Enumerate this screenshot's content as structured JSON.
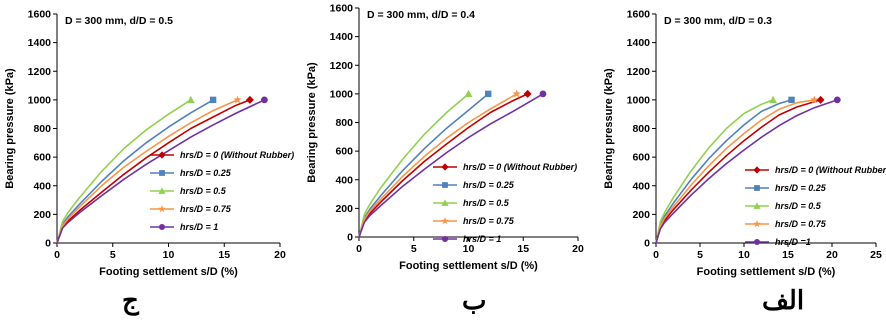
{
  "chart_data": [
    {
      "type": "line",
      "panel_label": "ج",
      "title": "D = 300 mm, d/D = 0.5",
      "xlabel": "Footing settlement  s/D (%)",
      "ylabel": "Bearing pressure (kPa)",
      "xlim": [
        0,
        20
      ],
      "ylim": [
        0,
        1600
      ],
      "xticks": [
        0,
        5,
        10,
        15,
        20
      ],
      "yticks": [
        0,
        200,
        400,
        600,
        800,
        1000,
        1200,
        1400,
        1600
      ],
      "grid": false,
      "legend_position": "bottom-right",
      "series": [
        {
          "name": "hrs/D = 0 (Without Rubber)",
          "color": "#c00000",
          "marker": "diamond",
          "x": [
            0,
            0.5,
            1,
            2,
            4,
            6,
            8,
            10,
            12,
            14,
            16,
            17.3
          ],
          "y": [
            0,
            110,
            155,
            225,
            355,
            480,
            595,
            700,
            800,
            880,
            960,
            1000
          ]
        },
        {
          "name": "hrs/D = 0.25",
          "color": "#4f81bd",
          "marker": "square",
          "x": [
            0,
            0.5,
            1,
            2,
            4,
            6,
            8,
            10,
            12,
            14
          ],
          "y": [
            0,
            130,
            185,
            270,
            430,
            575,
            700,
            810,
            910,
            1000
          ]
        },
        {
          "name": "hrs/D = 0.5",
          "color": "#92d050",
          "marker": "triangle",
          "x": [
            0,
            0.5,
            1,
            2,
            4,
            6,
            8,
            10,
            12
          ],
          "y": [
            0,
            150,
            215,
            315,
            500,
            660,
            790,
            900,
            1000
          ]
        },
        {
          "name": "hrs/D = 0.75",
          "color": "#f79646",
          "marker": "star",
          "x": [
            0,
            0.5,
            1,
            2,
            4,
            6,
            8,
            10,
            12,
            14,
            16.2
          ],
          "y": [
            0,
            120,
            170,
            250,
            400,
            530,
            640,
            745,
            840,
            925,
            1000
          ]
        },
        {
          "name": "hrs/D = 1",
          "color": "#7030a0",
          "marker": "circle",
          "x": [
            0,
            0.5,
            1,
            2,
            4,
            6,
            8,
            10,
            12,
            14,
            16,
            18.6
          ],
          "y": [
            0,
            105,
            145,
            210,
            330,
            445,
            550,
            645,
            740,
            825,
            905,
            1000
          ]
        }
      ]
    },
    {
      "type": "line",
      "panel_label": "ب",
      "title": "D = 300 mm, d/D = 0.4",
      "xlabel": "Footing settlement  s/D (%)",
      "ylabel": "Bearing pressure (kPa)",
      "xlim": [
        0,
        20
      ],
      "ylim": [
        0,
        1600
      ],
      "xticks": [
        0,
        5,
        10,
        15,
        20
      ],
      "yticks": [
        0,
        200,
        400,
        600,
        800,
        1000,
        1200,
        1400,
        1600
      ],
      "grid": false,
      "legend_position": "bottom-right",
      "series": [
        {
          "name": "hrs/D = 0 (Without Rubber)",
          "color": "#c00000",
          "marker": "diamond",
          "x": [
            0,
            0.5,
            1,
            2,
            4,
            6,
            8,
            10,
            12,
            14,
            15.4
          ],
          "y": [
            0,
            115,
            165,
            245,
            395,
            530,
            650,
            765,
            870,
            950,
            1000
          ]
        },
        {
          "name": "hrs/D = 0.25",
          "color": "#4f81bd",
          "marker": "square",
          "x": [
            0,
            0.5,
            1,
            2,
            4,
            6,
            8,
            10,
            11.8
          ],
          "y": [
            0,
            135,
            195,
            290,
            465,
            620,
            760,
            885,
            1000
          ]
        },
        {
          "name": "hrs/D = 0.5",
          "color": "#92d050",
          "marker": "triangle",
          "x": [
            0,
            0.5,
            1,
            2,
            4,
            6,
            8,
            10
          ],
          "y": [
            0,
            160,
            230,
            345,
            545,
            720,
            870,
            1000
          ]
        },
        {
          "name": "hrs/D = 0.75",
          "color": "#f79646",
          "marker": "star",
          "x": [
            0,
            0.5,
            1,
            2,
            4,
            6,
            8,
            10,
            12,
            14.4
          ],
          "y": [
            0,
            125,
            180,
            265,
            425,
            565,
            690,
            800,
            895,
            1000
          ]
        },
        {
          "name": "hrs/D = 1",
          "color": "#7030a0",
          "marker": "circle",
          "x": [
            0,
            0.5,
            1,
            2,
            4,
            6,
            8,
            10,
            12,
            14,
            16.8
          ],
          "y": [
            0,
            105,
            150,
            220,
            355,
            475,
            590,
            695,
            790,
            875,
            1000
          ]
        }
      ]
    },
    {
      "type": "line",
      "panel_label": "الف",
      "title": "D = 300 mm, d/D = 0.3",
      "xlabel": "Footing settlement  s/D (%)",
      "ylabel": "Bearing pressure (kPa)",
      "xlim": [
        0,
        25
      ],
      "ylim": [
        0,
        1600
      ],
      "xticks": [
        0,
        5,
        10,
        15,
        20,
        25
      ],
      "yticks": [
        0,
        200,
        400,
        600,
        800,
        1000,
        1200,
        1400,
        1600
      ],
      "grid": false,
      "legend_position": "bottom-right",
      "series": [
        {
          "name": "hrs/D = 0 (Without Rubber)",
          "color": "#c00000",
          "marker": "diamond",
          "x": [
            0,
            0.5,
            1,
            2,
            4,
            6,
            8,
            10,
            12,
            14,
            16,
            18.7
          ],
          "y": [
            0,
            110,
            160,
            235,
            370,
            495,
            610,
            715,
            810,
            895,
            950,
            1000
          ]
        },
        {
          "name": "hrs/D = 0.25",
          "color": "#4f81bd",
          "marker": "square",
          "x": [
            0,
            0.5,
            1,
            2,
            4,
            6,
            8,
            10,
            12,
            14,
            15.4
          ],
          "y": [
            0,
            130,
            190,
            280,
            445,
            590,
            715,
            825,
            920,
            975,
            1000
          ]
        },
        {
          "name": "hrs/D = 0.5",
          "color": "#92d050",
          "marker": "triangle",
          "x": [
            0,
            0.5,
            1,
            2,
            4,
            6,
            8,
            10,
            12,
            13.3
          ],
          "y": [
            0,
            150,
            215,
            320,
            505,
            665,
            800,
            905,
            970,
            1000
          ]
        },
        {
          "name": "hrs/D = 0.75",
          "color": "#f79646",
          "marker": "star",
          "x": [
            0,
            0.5,
            1,
            2,
            4,
            6,
            8,
            10,
            12,
            14,
            16,
            18
          ],
          "y": [
            0,
            120,
            175,
            255,
            405,
            540,
            660,
            765,
            860,
            935,
            980,
            1000
          ]
        },
        {
          "name": "hrs/D =1",
          "color": "#7030a0",
          "marker": "circle",
          "x": [
            0,
            0.5,
            1,
            2,
            4,
            6,
            8,
            10,
            12,
            14,
            16,
            18,
            20.6
          ],
          "y": [
            0,
            100,
            145,
            210,
            335,
            450,
            555,
            650,
            740,
            820,
            890,
            945,
            1000
          ]
        }
      ]
    }
  ]
}
